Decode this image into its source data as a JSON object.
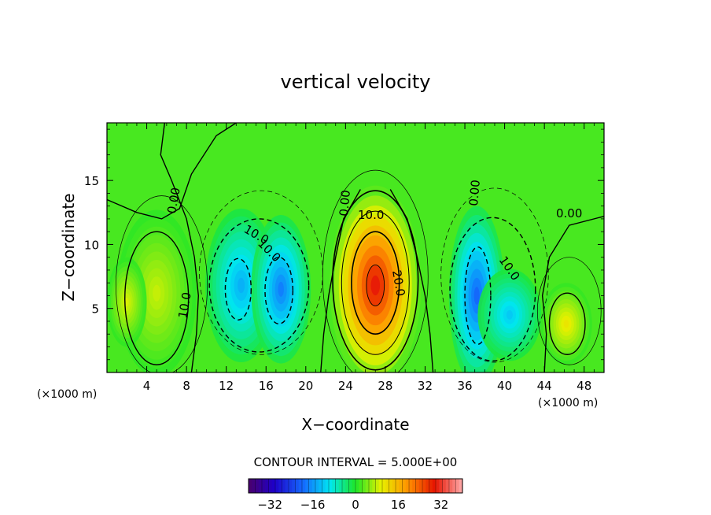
{
  "chart_data": {
    "type": "contour",
    "title": "vertical velocity",
    "xlabel": "X−coordinate",
    "ylabel": "Z−coordinate",
    "x_unit_label": "(×1000 m)",
    "x_unit_label_right": "(×1000 m)",
    "xlim": [
      0,
      50
    ],
    "ylim": [
      0,
      19.5
    ],
    "x_ticks": [
      4,
      8,
      12,
      16,
      20,
      24,
      28,
      32,
      36,
      40,
      44,
      48
    ],
    "y_ticks": [
      5,
      10,
      15
    ],
    "contour_interval_text": "CONTOUR INTERVAL = 5.000E+00",
    "contour_interval": 5.0,
    "colorbar": {
      "range": [
        -40,
        40
      ],
      "ticks": [
        -32,
        -16,
        0,
        16,
        32
      ],
      "tick_labels": [
        "−32",
        "−16",
        "0",
        "16",
        "32"
      ]
    },
    "contour_labels": [
      "0.00",
      "0.00",
      "0.00",
      "0.00",
      "10.0",
      "10.0",
      "10.0",
      "10.0",
      "10.0",
      "20.0"
    ],
    "features": [
      {
        "kind": "updraft",
        "x": 27,
        "z": 6.8,
        "peak": 30
      },
      {
        "kind": "downdraft",
        "x": 12.5,
        "z": 6,
        "peak": -15
      },
      {
        "kind": "downdraft",
        "x": 17.5,
        "z": 6.5,
        "peak": -18
      },
      {
        "kind": "downdraft",
        "x": 37,
        "z": 5,
        "peak": -20
      },
      {
        "kind": "downdraft",
        "x": 40.5,
        "z": 5,
        "peak": -12
      },
      {
        "kind": "updraft",
        "x": 46,
        "z": 4,
        "peak": 10
      },
      {
        "kind": "updraft",
        "x": 5,
        "z": 6,
        "peak": 8
      }
    ]
  }
}
